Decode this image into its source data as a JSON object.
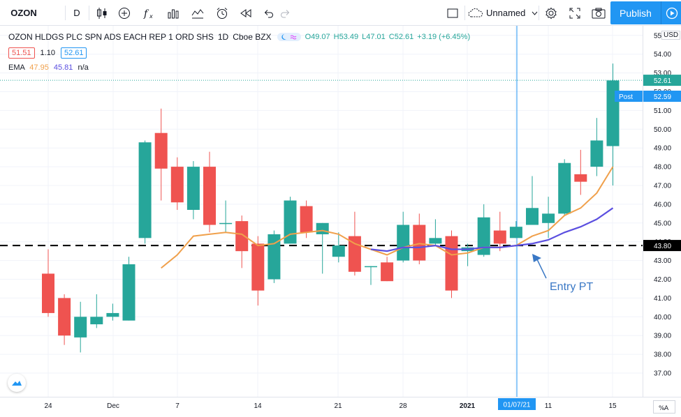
{
  "toolbar": {
    "symbol": "OZON",
    "interval": "D",
    "layout_name": "Unnamed",
    "publish_label": "Publish",
    "icons": [
      "candles-icon",
      "compare-icon",
      "indicators-icon",
      "templates-icon",
      "chart-type-icon",
      "alert-icon",
      "replay-icon",
      "undo-icon",
      "redo-icon",
      "layout-icon",
      "cloud-icon",
      "settings-icon",
      "fullscreen-icon",
      "snapshot-icon",
      "play-icon"
    ]
  },
  "legend": {
    "title": "OZON HLDGS PLC SPN ADS EACH REP 1 ORD SHS",
    "interval": "1D",
    "exchange": "Cboe BZX",
    "o": "O49.07",
    "h": "H53.49",
    "l": "L47.01",
    "c": "C52.61",
    "change": "+3.19 (+6.45%)",
    "bid": "51.51",
    "spread": "1.10",
    "ask": "52.61",
    "ema_label": "EMA",
    "ema_fast": "47.95",
    "ema_slow": "45.81",
    "ema_extra": "n/a"
  },
  "annotations": {
    "entry_label": "Entry PT",
    "hline_price": 43.8,
    "hline_label": "43.80",
    "crosshair_date": "01/07/21"
  },
  "price_axis": {
    "currency": "USD",
    "last_price": "52.61",
    "post_label": "Post",
    "post_price": "52.59",
    "ticks": [
      "37.00",
      "38.00",
      "39.00",
      "40.00",
      "41.00",
      "42.00",
      "43.00",
      "44.00",
      "45.00",
      "46.00",
      "47.00",
      "48.00",
      "49.00",
      "50.00",
      "51.00",
      "52.00",
      "53.00",
      "54.00",
      "55.00"
    ]
  },
  "time_axis": {
    "ticks": [
      "24",
      "Dec",
      "7",
      "14",
      "21",
      "28",
      "2021",
      "11",
      "15"
    ]
  },
  "colors": {
    "up": "#26a69a",
    "down": "#ef5350",
    "ema_fast": "#f0a04b",
    "ema_slow": "#5b4fe0",
    "accent": "#2196f3"
  },
  "chart_data": {
    "type": "candlestick",
    "ylim": [
      37,
      55
    ],
    "candles": [
      {
        "o": 42.3,
        "h": 43.6,
        "l": 40.0,
        "c": 40.2
      },
      {
        "o": 41.0,
        "h": 41.2,
        "l": 38.5,
        "c": 39.0
      },
      {
        "o": 38.9,
        "h": 40.8,
        "l": 38.1,
        "c": 40.0
      },
      {
        "o": 39.6,
        "h": 41.2,
        "l": 39.4,
        "c": 40.0
      },
      {
        "o": 40.0,
        "h": 40.7,
        "l": 39.8,
        "c": 40.2
      },
      {
        "o": 39.8,
        "h": 43.2,
        "l": 39.8,
        "c": 42.8
      },
      {
        "o": 44.2,
        "h": 49.4,
        "l": 43.9,
        "c": 49.3
      },
      {
        "o": 49.8,
        "h": 51.1,
        "l": 46.2,
        "c": 47.9
      },
      {
        "o": 48.0,
        "h": 48.5,
        "l": 45.7,
        "c": 46.1
      },
      {
        "o": 45.7,
        "h": 48.3,
        "l": 45.2,
        "c": 48.0
      },
      {
        "o": 48.0,
        "h": 48.8,
        "l": 44.5,
        "c": 44.9
      },
      {
        "o": 45.0,
        "h": 46.2,
        "l": 44.5,
        "c": 45.0
      },
      {
        "o": 45.1,
        "h": 45.4,
        "l": 42.6,
        "c": 43.5
      },
      {
        "o": 43.9,
        "h": 44.3,
        "l": 40.6,
        "c": 41.4
      },
      {
        "o": 42.0,
        "h": 44.6,
        "l": 41.8,
        "c": 44.4
      },
      {
        "o": 43.9,
        "h": 46.4,
        "l": 43.9,
        "c": 46.2
      },
      {
        "o": 45.9,
        "h": 46.2,
        "l": 44.2,
        "c": 44.5
      },
      {
        "o": 44.4,
        "h": 45.0,
        "l": 42.3,
        "c": 45.0
      },
      {
        "o": 43.2,
        "h": 44.5,
        "l": 42.9,
        "c": 43.8
      },
      {
        "o": 44.3,
        "h": 45.6,
        "l": 42.2,
        "c": 42.4
      },
      {
        "o": 42.7,
        "h": 42.7,
        "l": 41.7,
        "c": 42.7
      },
      {
        "o": 42.9,
        "h": 43.2,
        "l": 41.9,
        "c": 41.9
      },
      {
        "o": 43.0,
        "h": 45.6,
        "l": 42.9,
        "c": 44.9
      },
      {
        "o": 44.9,
        "h": 45.5,
        "l": 42.8,
        "c": 43.0
      },
      {
        "o": 43.9,
        "h": 45.2,
        "l": 43.8,
        "c": 44.2
      },
      {
        "o": 44.3,
        "h": 44.6,
        "l": 41.0,
        "c": 41.4
      },
      {
        "o": 43.5,
        "h": 43.9,
        "l": 42.7,
        "c": 43.7
      },
      {
        "o": 43.3,
        "h": 46.0,
        "l": 43.2,
        "c": 45.3
      },
      {
        "o": 44.6,
        "h": 45.6,
        "l": 43.5,
        "c": 43.9
      },
      {
        "o": 44.2,
        "h": 45.1,
        "l": 44.2,
        "c": 44.8
      },
      {
        "o": 44.9,
        "h": 47.5,
        "l": 44.9,
        "c": 45.8
      },
      {
        "o": 45.0,
        "h": 46.4,
        "l": 44.2,
        "c": 45.5
      },
      {
        "o": 45.5,
        "h": 48.4,
        "l": 45.4,
        "c": 48.2
      },
      {
        "o": 47.6,
        "h": 48.9,
        "l": 46.5,
        "c": 47.2
      },
      {
        "o": 48.0,
        "h": 50.6,
        "l": 47.5,
        "c": 49.4
      },
      {
        "o": 49.1,
        "h": 53.5,
        "l": 47.0,
        "c": 52.6
      }
    ],
    "ema_fast": [
      {
        "i": 7,
        "y": 42.6
      },
      {
        "i": 8,
        "y": 43.3
      },
      {
        "i": 9,
        "y": 44.3
      },
      {
        "i": 10,
        "y": 44.4
      },
      {
        "i": 11,
        "y": 44.5
      },
      {
        "i": 12,
        "y": 44.4
      },
      {
        "i": 13,
        "y": 43.8
      },
      {
        "i": 14,
        "y": 43.9
      },
      {
        "i": 15,
        "y": 44.4
      },
      {
        "i": 16,
        "y": 44.5
      },
      {
        "i": 17,
        "y": 44.6
      },
      {
        "i": 18,
        "y": 44.4
      },
      {
        "i": 19,
        "y": 43.9
      },
      {
        "i": 20,
        "y": 43.6
      },
      {
        "i": 21,
        "y": 43.3
      },
      {
        "i": 22,
        "y": 43.7
      },
      {
        "i": 23,
        "y": 43.9
      },
      {
        "i": 24,
        "y": 43.8
      },
      {
        "i": 25,
        "y": 43.3
      },
      {
        "i": 26,
        "y": 43.4
      },
      {
        "i": 27,
        "y": 43.7
      },
      {
        "i": 28,
        "y": 43.7
      },
      {
        "i": 29,
        "y": 43.8
      },
      {
        "i": 30,
        "y": 44.3
      },
      {
        "i": 31,
        "y": 44.6
      },
      {
        "i": 32,
        "y": 45.4
      },
      {
        "i": 33,
        "y": 45.8
      },
      {
        "i": 34,
        "y": 46.6
      },
      {
        "i": 35,
        "y": 48.0
      }
    ],
    "ema_slow": [
      {
        "i": 20,
        "y": 43.6
      },
      {
        "i": 21,
        "y": 43.5
      },
      {
        "i": 22,
        "y": 43.7
      },
      {
        "i": 23,
        "y": 43.7
      },
      {
        "i": 24,
        "y": 43.8
      },
      {
        "i": 25,
        "y": 43.6
      },
      {
        "i": 26,
        "y": 43.6
      },
      {
        "i": 27,
        "y": 43.7
      },
      {
        "i": 28,
        "y": 43.7
      },
      {
        "i": 29,
        "y": 43.8
      },
      {
        "i": 30,
        "y": 43.9
      },
      {
        "i": 31,
        "y": 44.1
      },
      {
        "i": 32,
        "y": 44.5
      },
      {
        "i": 33,
        "y": 44.8
      },
      {
        "i": 34,
        "y": 45.2
      },
      {
        "i": 35,
        "y": 45.8
      }
    ]
  }
}
